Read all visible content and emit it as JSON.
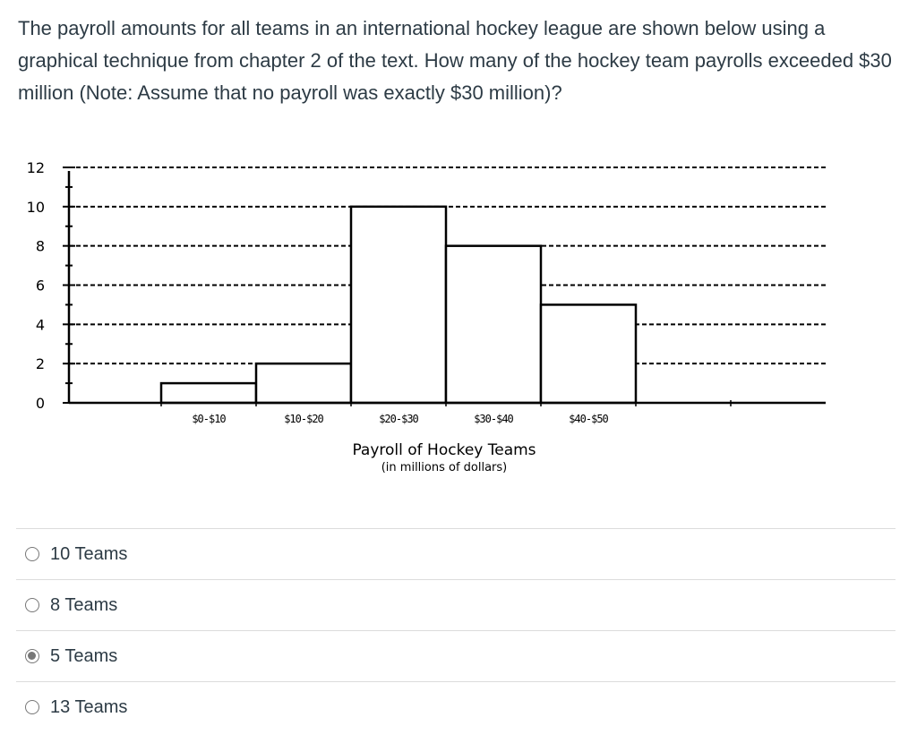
{
  "question": {
    "text": "The payroll amounts for all teams in an international hockey league are shown below using a graphical technique from chapter 2 of the text. How many of the hockey team payrolls exceeded $30 million (Note: Assume that no payroll was exactly $30 million)?"
  },
  "chart_data": {
    "type": "bar",
    "categories": [
      "$0-$10",
      "$10-$20",
      "$20-$30",
      "$30-$40",
      "$40-$50"
    ],
    "values": [
      1,
      2,
      10,
      8,
      5
    ],
    "xlabel": "Payroll of Hockey Teams",
    "xlabel_sub": "(in millions of dollars)",
    "ylabel": "",
    "ylim": [
      0,
      12
    ],
    "yticks": [
      "0",
      "2",
      "4",
      "6",
      "8",
      "10",
      "12"
    ],
    "grid": "dashed horizontal",
    "legend": "none"
  },
  "options": [
    {
      "label": "10 Teams",
      "selected": false
    },
    {
      "label": "8 Teams",
      "selected": false
    },
    {
      "label": "5 Teams",
      "selected": true
    },
    {
      "label": "13 Teams",
      "selected": false
    }
  ]
}
